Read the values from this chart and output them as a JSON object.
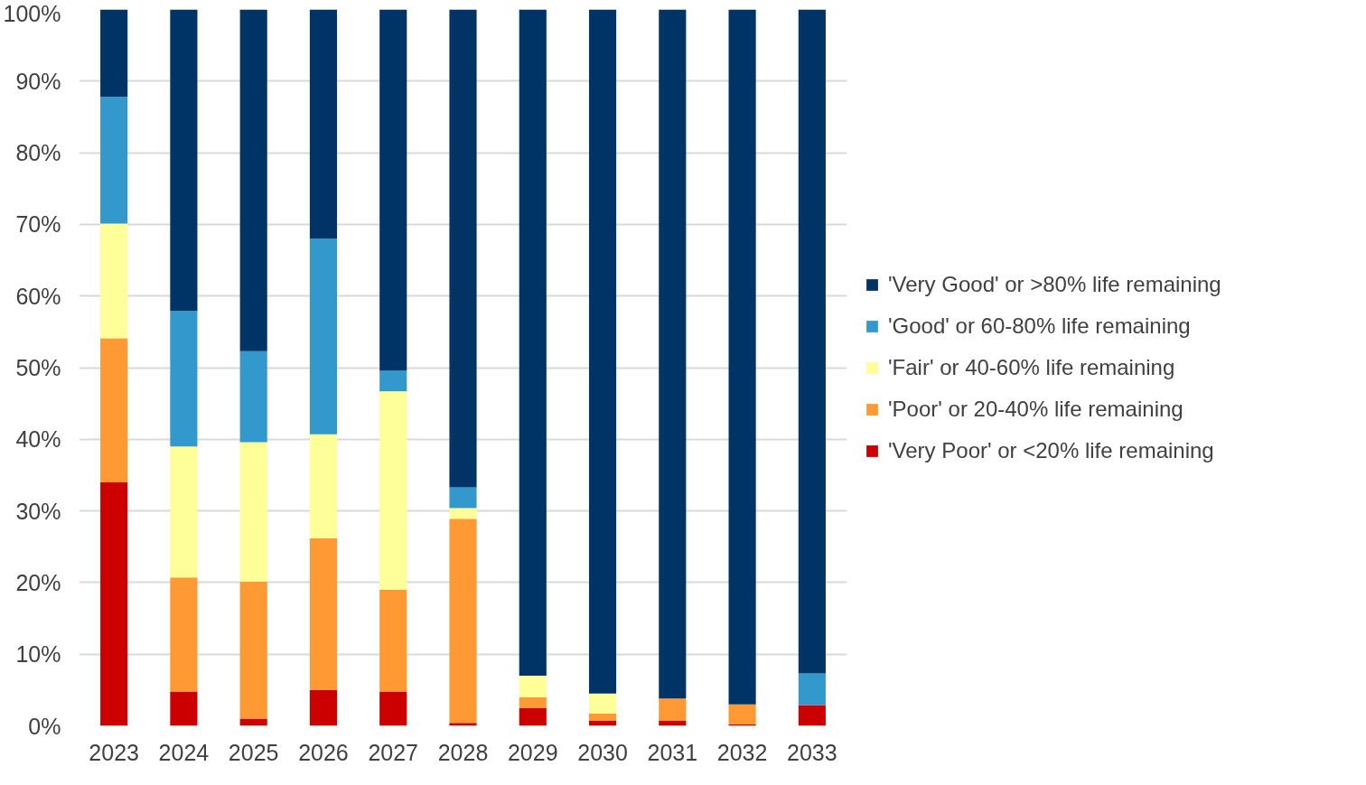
{
  "chart_data": {
    "type": "bar",
    "stacked": true,
    "categories": [
      "2023",
      "2024",
      "2025",
      "2026",
      "2027",
      "2028",
      "2029",
      "2030",
      "2031",
      "2032",
      "2033"
    ],
    "series": [
      {
        "name": "'Very Poor' or <20% life remaining",
        "color": "#cc0000",
        "values": [
          34.0,
          4.8,
          1.0,
          5.0,
          4.8,
          0.4,
          2.5,
          0.7,
          0.7,
          0.2,
          2.9
        ]
      },
      {
        "name": "'Poor' or 20-40% life remaining",
        "color": "#ff9933",
        "values": [
          20.1,
          15.9,
          19.1,
          21.2,
          14.2,
          28.5,
          1.5,
          1.0,
          3.1,
          2.8,
          0
        ]
      },
      {
        "name": "'Fair' or 40-60% life remaining",
        "color": "#ffff99",
        "values": [
          16.0,
          18.3,
          19.5,
          14.5,
          27.7,
          1.5,
          3.0,
          2.8,
          0,
          0,
          0
        ]
      },
      {
        "name": "'Good' or 60-80% life remaining",
        "color": "#3399cc",
        "values": [
          17.7,
          18.9,
          12.7,
          27.3,
          2.9,
          2.9,
          0,
          0,
          0,
          0,
          4.4
        ]
      },
      {
        "name": "'Very Good' or >80% life remaining",
        "color": "#003366",
        "values": [
          12.2,
          42.1,
          47.7,
          32.0,
          50.4,
          66.7,
          93.0,
          95.5,
          96.2,
          97.0,
          92.7
        ]
      }
    ],
    "ylim": [
      0,
      100
    ],
    "yticks": [
      {
        "value": 0,
        "label": "0%"
      },
      {
        "value": 10,
        "label": "10%"
      },
      {
        "value": 20,
        "label": "20%"
      },
      {
        "value": 30,
        "label": "30%"
      },
      {
        "value": 40,
        "label": "40%"
      },
      {
        "value": 50,
        "label": "50%"
      },
      {
        "value": 60,
        "label": "60%"
      },
      {
        "value": 70,
        "label": "70%"
      },
      {
        "value": 80,
        "label": "80%"
      },
      {
        "value": 90,
        "label": "90%"
      },
      {
        "value": 100,
        "label": "100%"
      }
    ],
    "grid": "y",
    "legend": "right"
  }
}
